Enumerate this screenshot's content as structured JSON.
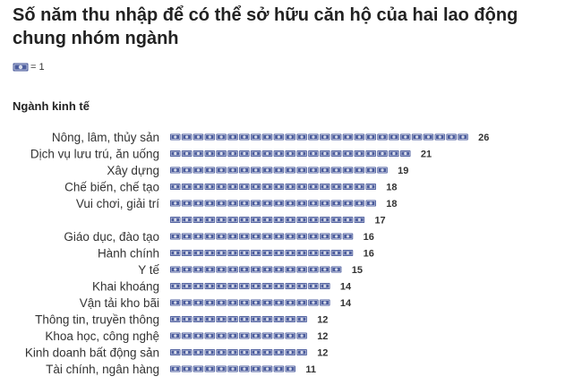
{
  "title": "Số năm thu nhập để có thể sở hữu căn hộ của hai lao động chung nhóm ngành",
  "legend": {
    "icon": "banknote-icon",
    "text": "= 1"
  },
  "section_label": "Ngành kinh tế",
  "colors": {
    "banknote": "#4a5b9c",
    "banknote_center": "#d9ddea",
    "text": "#333333"
  },
  "chart_data": {
    "type": "bar",
    "orientation": "horizontal",
    "style": "pictograph",
    "unit_per_icon": 1,
    "categories": [
      "Nông, lâm, thủy sản",
      "Dịch vụ lưu trú, ăn uống",
      "Xây dựng",
      "Chế biến, chế tạo",
      "Vui chơi, giải trí",
      "",
      "Giáo dục, đào tạo",
      "Hành chính",
      "Y tế",
      "Khai khoáng",
      "Vận tải kho bãi",
      "Thông tin, truyền thông",
      "Khoa học, công nghệ",
      "Kinh doanh bất động sản",
      "Tài chính, ngân hàng"
    ],
    "values": [
      26,
      21,
      19,
      18,
      18,
      17,
      16,
      16,
      15,
      14,
      14,
      12,
      12,
      12,
      11
    ],
    "title": "Số năm thu nhập để có thể sở hữu căn hộ của hai lao động chung nhóm ngành",
    "xlabel": "",
    "ylabel": "Ngành kinh tế"
  }
}
